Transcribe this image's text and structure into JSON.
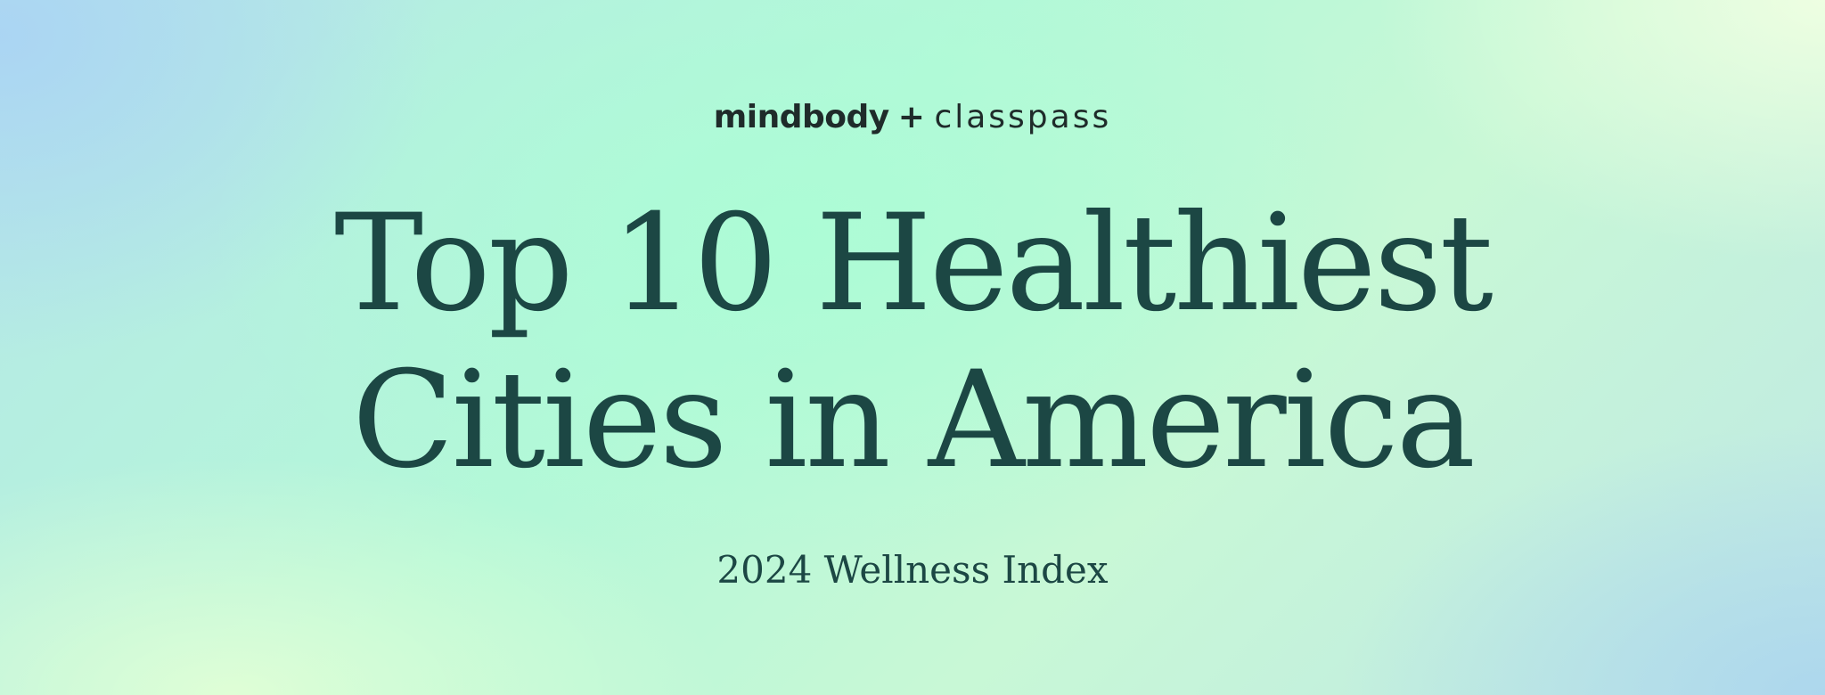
{
  "brand": {
    "part1": "mindbody",
    "plus": "+",
    "part2": "classpass"
  },
  "headline": {
    "line1": "Top 10 Healthiest",
    "line2": "Cities in America"
  },
  "subtitle": "2024 Wellness Index",
  "colors": {
    "text_dark_green": "#1c4744",
    "brand_text": "#1f2b2a"
  }
}
